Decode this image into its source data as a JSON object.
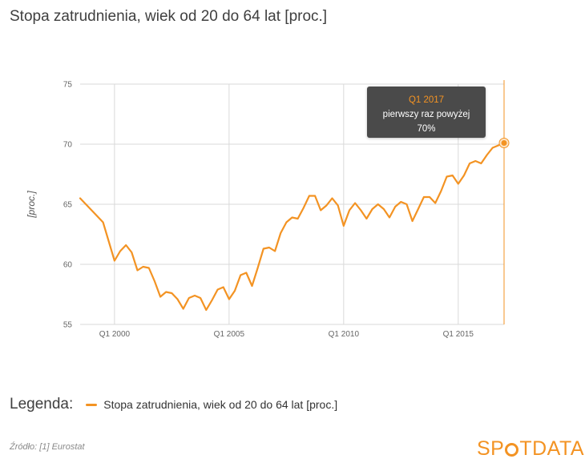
{
  "title": "Stopa zatrudnienia, wiek od 20 do 64 lat [proc.]",
  "legend": {
    "title": "Legenda:",
    "items": [
      {
        "label": "Stopa zatrudnienia, wiek od 20 do 64 lat [proc.]",
        "color": "#f39323"
      }
    ]
  },
  "source": "Źródło: [1] Eurostat",
  "logo": {
    "before": "SP",
    "after": "TDATA"
  },
  "tooltip": {
    "heading": "Q1 2017",
    "line1": "pierwszy raz powyżej",
    "line2": "70%"
  },
  "colors": {
    "series": "#f39323",
    "grid": "#d9d9d9",
    "tooltip_bg": "#4a4a4a"
  },
  "chart_data": {
    "type": "line",
    "title": "Stopa zatrudnienia, wiek od 20 do 64 lat [proc.]",
    "xlabel": "",
    "ylabel": "[proc.]",
    "ylim": [
      55,
      75
    ],
    "yticks": [
      55,
      60,
      65,
      70,
      75
    ],
    "xticks": [
      "Q1 2000",
      "Q1 2005",
      "Q1 2010",
      "Q1 2015"
    ],
    "grid": true,
    "legend_position": "bottom",
    "highlight": {
      "x": "Q1 2017",
      "y": 70.1
    },
    "x": [
      "Q3 1998",
      "Q1 1999",
      "Q3 1999",
      "Q1 2000",
      "Q2 2000",
      "Q3 2000",
      "Q4 2000",
      "Q1 2001",
      "Q2 2001",
      "Q3 2001",
      "Q4 2001",
      "Q1 2002",
      "Q2 2002",
      "Q3 2002",
      "Q4 2002",
      "Q1 2003",
      "Q2 2003",
      "Q3 2003",
      "Q4 2003",
      "Q1 2004",
      "Q2 2004",
      "Q3 2004",
      "Q4 2004",
      "Q1 2005",
      "Q2 2005",
      "Q3 2005",
      "Q4 2005",
      "Q1 2006",
      "Q2 2006",
      "Q3 2006",
      "Q4 2006",
      "Q1 2007",
      "Q2 2007",
      "Q3 2007",
      "Q4 2007",
      "Q1 2008",
      "Q2 2008",
      "Q3 2008",
      "Q4 2008",
      "Q1 2009",
      "Q2 2009",
      "Q3 2009",
      "Q4 2009",
      "Q1 2010",
      "Q2 2010",
      "Q3 2010",
      "Q4 2010",
      "Q1 2011",
      "Q2 2011",
      "Q3 2011",
      "Q4 2011",
      "Q1 2012",
      "Q2 2012",
      "Q3 2012",
      "Q4 2012",
      "Q1 2013",
      "Q2 2013",
      "Q3 2013",
      "Q4 2013",
      "Q1 2014",
      "Q2 2014",
      "Q3 2014",
      "Q4 2014",
      "Q1 2015",
      "Q2 2015",
      "Q3 2015",
      "Q4 2015",
      "Q1 2016",
      "Q2 2016",
      "Q3 2016",
      "Q4 2016",
      "Q1 2017"
    ],
    "series": [
      {
        "name": "Stopa zatrudnienia, wiek od 20 do 64 lat [proc.]",
        "values": [
          65.5,
          64.5,
          63.5,
          60.3,
          61.1,
          61.6,
          61.0,
          59.5,
          59.8,
          59.7,
          58.6,
          57.3,
          57.7,
          57.6,
          57.1,
          56.3,
          57.2,
          57.4,
          57.2,
          56.2,
          57.0,
          57.9,
          58.1,
          57.1,
          57.8,
          59.1,
          59.3,
          58.2,
          59.7,
          61.3,
          61.4,
          61.1,
          62.6,
          63.5,
          63.9,
          63.8,
          64.7,
          65.7,
          65.7,
          64.5,
          64.9,
          65.5,
          64.9,
          63.2,
          64.5,
          65.1,
          64.5,
          63.8,
          64.6,
          65.0,
          64.6,
          63.9,
          64.8,
          65.2,
          65.0,
          63.6,
          64.6,
          65.6,
          65.6,
          65.1,
          66.1,
          67.3,
          67.4,
          66.7,
          67.4,
          68.4,
          68.6,
          68.4,
          69.1,
          69.7,
          69.9,
          70.1
        ]
      }
    ]
  }
}
